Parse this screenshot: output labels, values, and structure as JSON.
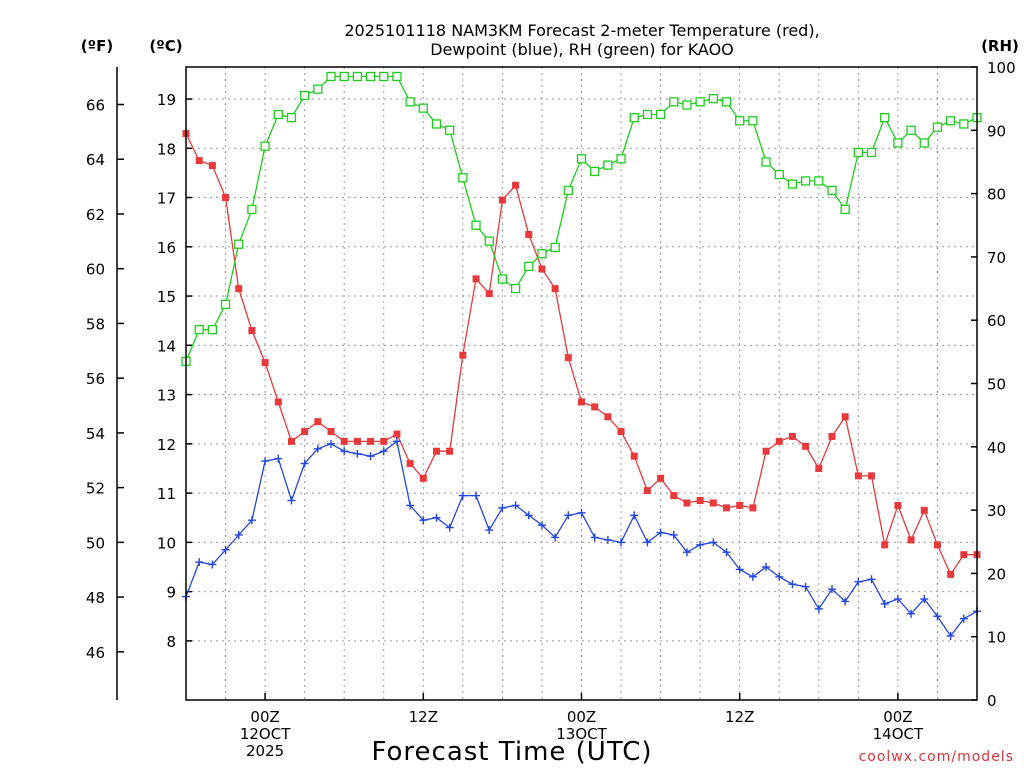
{
  "chart_data": {
    "type": "line",
    "title_line1": "2025101118 NAM3KM Forecast 2-meter Temperature (red),",
    "title_line2": "Dewpoint (blue), RH (green) for KAOO",
    "xlabel": "Forecast Time (UTC)",
    "credit": "coolwx.com/models",
    "unit_f": "(ºF)",
    "unit_c": "(ºC)",
    "unit_rh": "(RH)",
    "x_range_hours": [
      0,
      60
    ],
    "ylim_c": [
      6.8,
      19.65
    ],
    "ylim_rh": [
      0,
      100
    ],
    "f_ticks": [
      "46",
      "48",
      "50",
      "52",
      "54",
      "56",
      "58",
      "60",
      "62",
      "64",
      "66"
    ],
    "c_ticks": [
      "8",
      "9",
      "10",
      "11",
      "12",
      "13",
      "14",
      "15",
      "16",
      "17",
      "18",
      "19"
    ],
    "rh_ticks": [
      "0",
      "10",
      "20",
      "30",
      "40",
      "50",
      "60",
      "70",
      "80",
      "90",
      "100"
    ],
    "x_ticks": [
      {
        "hour": 6,
        "lines": [
          "00Z",
          "12OCT",
          "2025"
        ]
      },
      {
        "hour": 18,
        "lines": [
          "12Z"
        ]
      },
      {
        "hour": 30,
        "lines": [
          "00Z",
          "13OCT"
        ]
      },
      {
        "hour": 42,
        "lines": [
          "12Z"
        ]
      },
      {
        "hour": 54,
        "lines": [
          "00Z",
          "14OCT"
        ]
      }
    ],
    "hours": [
      0,
      1,
      2,
      3,
      4,
      5,
      6,
      7,
      8,
      9,
      10,
      11,
      12,
      13,
      14,
      15,
      16,
      17,
      18,
      19,
      20,
      21,
      22,
      23,
      24,
      25,
      26,
      27,
      28,
      29,
      30,
      31,
      32,
      33,
      34,
      35,
      36,
      37,
      38,
      39,
      40,
      41,
      42,
      43,
      44,
      45,
      46,
      47,
      48,
      49,
      50,
      51,
      52,
      53,
      54,
      55,
      56,
      57,
      58,
      59,
      60
    ],
    "series": [
      {
        "name": "2-meter Temperature",
        "unit": "C",
        "color": "#e8393d",
        "marker": "filled-square",
        "values": [
          18.3,
          17.75,
          17.65,
          17.0,
          15.15,
          14.3,
          13.65,
          12.85,
          12.05,
          12.25,
          12.45,
          12.25,
          12.05,
          12.05,
          12.05,
          12.05,
          12.2,
          11.6,
          11.3,
          11.85,
          11.85,
          13.8,
          15.35,
          15.05,
          16.95,
          17.25,
          16.25,
          15.55,
          15.15,
          13.75,
          12.85,
          12.75,
          12.55,
          12.25,
          11.75,
          11.05,
          11.3,
          10.95,
          10.8,
          10.85,
          10.8,
          10.7,
          10.75,
          10.7,
          11.85,
          12.05,
          12.15,
          11.95,
          11.5,
          12.15,
          12.55,
          11.35,
          11.35,
          9.95,
          10.75,
          10.05,
          10.65,
          9.95,
          9.35,
          9.75,
          9.75
        ]
      },
      {
        "name": "Dewpoint",
        "unit": "C",
        "color": "#2447e0",
        "marker": "plus",
        "values": [
          8.9,
          9.6,
          9.55,
          9.85,
          10.15,
          10.45,
          11.65,
          11.7,
          10.85,
          11.6,
          11.9,
          12.0,
          11.85,
          11.8,
          11.75,
          11.85,
          12.05,
          10.75,
          10.45,
          10.5,
          10.3,
          10.95,
          10.95,
          10.25,
          10.7,
          10.75,
          10.55,
          10.35,
          10.1,
          10.55,
          10.6,
          10.1,
          10.05,
          10.0,
          10.55,
          10.0,
          10.2,
          10.15,
          9.8,
          9.95,
          10.0,
          9.8,
          9.45,
          9.3,
          9.5,
          9.3,
          9.15,
          9.1,
          8.65,
          9.05,
          8.8,
          9.2,
          9.25,
          8.75,
          8.85,
          8.55,
          8.85,
          8.5,
          8.1,
          8.45,
          8.6
        ]
      },
      {
        "name": "Relative Humidity",
        "unit": "%",
        "color": "#1ecc1e",
        "marker": "open-square",
        "values": [
          53.5,
          58.5,
          58.5,
          62.5,
          72,
          77.5,
          87.5,
          92.5,
          92,
          95.5,
          96.5,
          98.5,
          98.5,
          98.5,
          98.5,
          98.5,
          98.5,
          94.5,
          93.5,
          91,
          90,
          82.5,
          75,
          72.5,
          66.5,
          65,
          68.5,
          70.5,
          71.5,
          80.5,
          85.5,
          83.5,
          84.5,
          85.5,
          92,
          92.5,
          92.5,
          94.5,
          94,
          94.5,
          95,
          94.5,
          91.5,
          91.5,
          85,
          83,
          81.5,
          82,
          82,
          80.5,
          77.5,
          86.5,
          86.5,
          92,
          88,
          90,
          88,
          90.5,
          91.5,
          91,
          92
        ]
      }
    ]
  }
}
